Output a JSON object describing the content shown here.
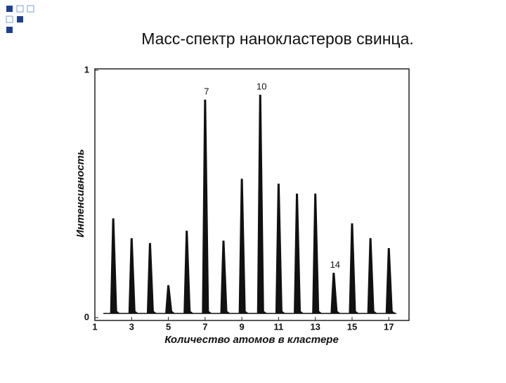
{
  "chart_data": {
    "type": "spectrum",
    "title": "Масс-спектр нанокластеров свинца.",
    "x_label": "Количество атомов в кластере",
    "y_label": "Интенсивность",
    "x": [
      2,
      3,
      4,
      5,
      6,
      7,
      8,
      9,
      10,
      11,
      12,
      13,
      14,
      15,
      16,
      17
    ],
    "values": [
      0.4,
      0.32,
      0.3,
      0.13,
      0.35,
      0.88,
      0.31,
      0.56,
      0.9,
      0.54,
      0.5,
      0.5,
      0.18,
      0.38,
      0.32,
      0.28
    ],
    "color": "#111111",
    "xlim": [
      1,
      18.1
    ],
    "xticks": [
      1,
      3,
      5,
      7,
      9,
      11,
      13,
      15,
      17
    ],
    "ylim": [
      0,
      1
    ],
    "yticks": [
      0,
      1
    ],
    "grid": false,
    "annotations": [
      {
        "text": "7",
        "x": 7
      },
      {
        "text": "10",
        "x": 10
      },
      {
        "text": "14",
        "x": 14
      }
    ]
  }
}
